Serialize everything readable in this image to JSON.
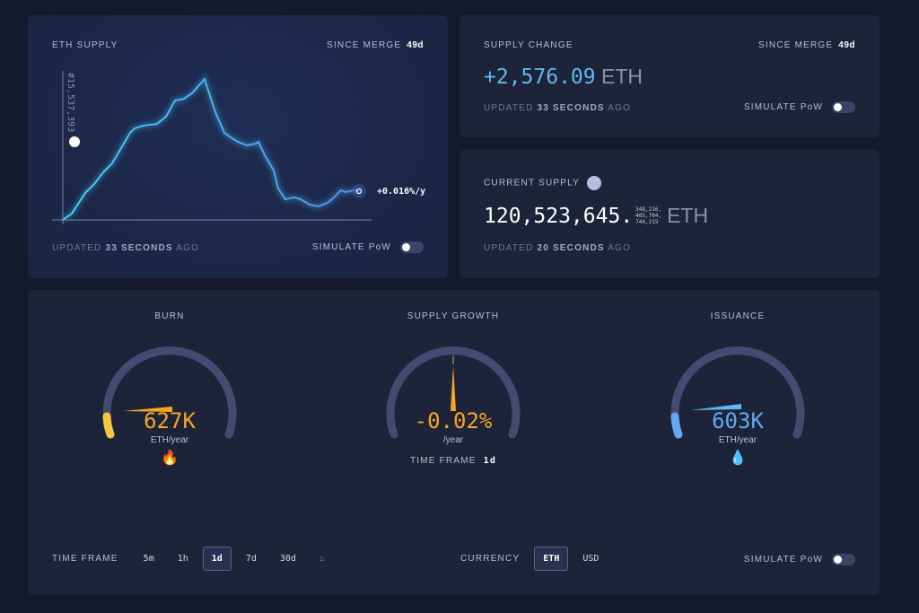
{
  "eth_supply": {
    "title": "ETH SUPPLY",
    "since_label": "SINCE MERGE",
    "since_value": "49d",
    "block_label": "#15,537,393",
    "rate": "+0.016%/y",
    "updated_prefix": "UPDATED",
    "updated_value": "33 SECONDS",
    "updated_suffix": "AGO",
    "simulate": "SIMULATE PoW"
  },
  "supply_change": {
    "title": "SUPPLY CHANGE",
    "since_label": "SINCE MERGE",
    "since_value": "49d",
    "value": "+2,576.09",
    "unit": "ETH",
    "updated_prefix": "UPDATED",
    "updated_value": "33 SECONDS",
    "updated_suffix": "AGO",
    "simulate": "SIMULATE PoW"
  },
  "current_supply": {
    "title": "CURRENT SUPPLY",
    "integer": "120,523,645.",
    "decimals": [
      "348,216,",
      "485,704,",
      "744,215"
    ],
    "unit": "ETH",
    "updated_prefix": "UPDATED",
    "updated_value": "20 SECONDS",
    "updated_suffix": "AGO"
  },
  "gauges": {
    "burn": {
      "title": "BURN",
      "value": "627K",
      "unit": "ETH/year",
      "icon": "fire-icon",
      "color": "#f5a623"
    },
    "growth": {
      "title": "SUPPLY GROWTH",
      "value": "-0.02%",
      "unit": "/year",
      "tf_label": "TIME FRAME",
      "tf_value": "1d",
      "color": "#f5a623"
    },
    "issuance": {
      "title": "ISSUANCE",
      "value": "603K",
      "unit": "ETH/year",
      "icon": "droplet-icon",
      "color": "#62a8f0"
    }
  },
  "controls": {
    "timeframe_label": "TIME FRAME",
    "timeframes": [
      "5m",
      "1h",
      "1d",
      "7d",
      "30d"
    ],
    "selected": "1d",
    "currency_label": "CURRENCY",
    "currencies": [
      "ETH",
      "USD"
    ],
    "currency_selected": "ETH",
    "simulate": "SIMULATE PoW"
  }
}
